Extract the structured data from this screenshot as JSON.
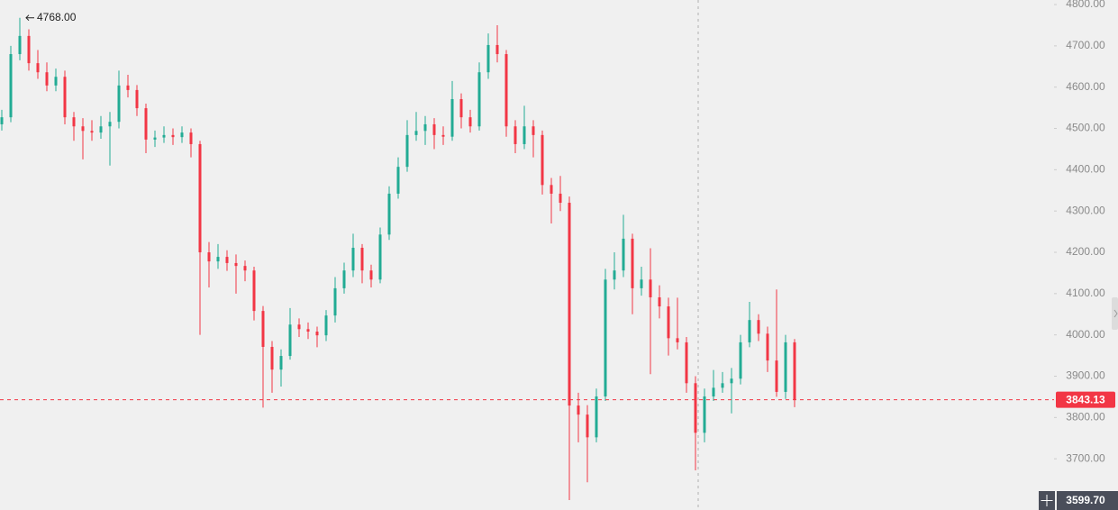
{
  "chart_data": {
    "type": "candlestick",
    "open": [
      4510,
      4527,
      4680,
      4724,
      4658,
      4636,
      4604,
      4625,
      4527,
      4505,
      4494,
      4490,
      4505,
      4516,
      4604,
      4593,
      4549,
      4473,
      4478,
      4484,
      4479,
      4490,
      4462,
      4200,
      4178,
      4189,
      4174,
      4167,
      4156,
      4058,
      3971,
      3916,
      3949,
      4025,
      4014,
      4008,
      3999,
      4047,
      4113,
      4156,
      4211,
      4156,
      4134,
      4243,
      4342,
      4407,
      4484,
      4494,
      4510,
      4484,
      4480,
      4571,
      4527,
      4505,
      4636,
      4702,
      4680,
      4505,
      4462,
      4505,
      4484,
      4363,
      4342,
      4320,
      3829,
      3807,
      3752,
      3851,
      4134,
      4156,
      4233,
      4113,
      4134,
      4091,
      4069,
      3992,
      3982,
      3883,
      3763,
      3851,
      3872,
      3883,
      3894,
      3982,
      4036,
      4003,
      3938,
      3862,
      3982
    ],
    "high": [
      4545,
      4700,
      4768,
      4740,
      4690,
      4660,
      4645,
      4640,
      4540,
      4525,
      4520,
      4530,
      4540,
      4640,
      4630,
      4605,
      4560,
      4495,
      4505,
      4500,
      4505,
      4500,
      4470,
      4225,
      4220,
      4205,
      4195,
      4180,
      4165,
      4070,
      3985,
      3965,
      4065,
      4040,
      4030,
      4020,
      4060,
      4140,
      4175,
      4245,
      4220,
      4170,
      4260,
      4360,
      4430,
      4520,
      4540,
      4530,
      4525,
      4505,
      4615,
      4585,
      4545,
      4660,
      4730,
      4750,
      4690,
      4520,
      4555,
      4520,
      4495,
      4380,
      4385,
      4335,
      3860,
      3830,
      3870,
      4160,
      4200,
      4291,
      4245,
      4165,
      4210,
      4120,
      4090,
      4090,
      3995,
      3900,
      3870,
      3915,
      3910,
      3920,
      4000,
      4080,
      4050,
      4020,
      4110,
      4000,
      3990
    ],
    "low": [
      4495,
      4515,
      4665,
      4640,
      4620,
      4590,
      4590,
      4510,
      4470,
      4425,
      4470,
      4475,
      4410,
      4500,
      4575,
      4530,
      4440,
      4455,
      4465,
      4460,
      4465,
      4430,
      4000,
      4115,
      4160,
      4155,
      4100,
      4130,
      4035,
      3824,
      3860,
      3875,
      3940,
      3995,
      3990,
      3970,
      3985,
      4030,
      4100,
      4140,
      4125,
      4115,
      4125,
      4230,
      4330,
      4395,
      4470,
      4460,
      4450,
      4460,
      4470,
      4500,
      4490,
      4495,
      4620,
      4660,
      4480,
      4440,
      4450,
      4430,
      4340,
      4270,
      4300,
      3600,
      3740,
      3643,
      3740,
      3840,
      4110,
      4140,
      4050,
      4095,
      3905,
      4040,
      3950,
      3965,
      3860,
      3672,
      3740,
      3840,
      3860,
      3810,
      3880,
      3970,
      3985,
      3910,
      3850,
      3845,
      3825
    ],
    "close": [
      4527,
      4680,
      4724,
      4658,
      4636,
      4604,
      4625,
      4527,
      4505,
      4494,
      4490,
      4505,
      4516,
      4604,
      4593,
      4549,
      4473,
      4478,
      4484,
      4479,
      4490,
      4462,
      4200,
      4178,
      4189,
      4174,
      4167,
      4156,
      4058,
      3971,
      3916,
      3949,
      4025,
      4014,
      4008,
      3999,
      4047,
      4113,
      4156,
      4211,
      4156,
      4134,
      4243,
      4342,
      4407,
      4484,
      4494,
      4510,
      4484,
      4480,
      4571,
      4527,
      4505,
      4636,
      4702,
      4680,
      4505,
      4462,
      4505,
      4484,
      4363,
      4342,
      4320,
      3829,
      3807,
      3752,
      3851,
      4134,
      4156,
      4233,
      4113,
      4134,
      4091,
      4069,
      3992,
      3982,
      3883,
      3763,
      3851,
      3872,
      3883,
      3894,
      3982,
      4036,
      4003,
      3938,
      3862,
      3982,
      3843.13
    ],
    "up_color": "#22ab94",
    "down_color": "#f23645",
    "ylim": [
      3576,
      4811
    ],
    "yticks": [
      {
        "value": 3700,
        "label": "3700.00"
      },
      {
        "value": 3800,
        "label": "3800.00"
      },
      {
        "value": 3900,
        "label": "3900.00"
      },
      {
        "value": 4000,
        "label": "4000.00"
      },
      {
        "value": 4100,
        "label": "4100.00"
      },
      {
        "value": 4200,
        "label": "4200.00"
      },
      {
        "value": 4300,
        "label": "4300.00"
      },
      {
        "value": 4400,
        "label": "4400.00"
      },
      {
        "value": 4500,
        "label": "4500.00"
      },
      {
        "value": 4600,
        "label": "4600.00"
      },
      {
        "value": 4700,
        "label": "4700.00"
      },
      {
        "value": 4800,
        "label": "4800.00"
      }
    ],
    "max_marker": {
      "value": 4768,
      "label": "4768.00"
    },
    "current_price": 3843.13,
    "crosshair_price": {
      "value": 3599.7,
      "label": "3599.70"
    }
  }
}
